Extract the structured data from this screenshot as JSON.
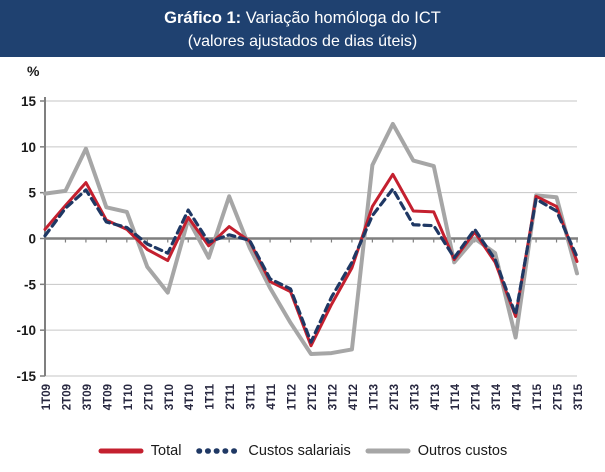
{
  "header": {
    "title_prefix": "Gráfico 1:",
    "title_main": " Variação homóloga do ICT",
    "subtitle": "(valores ajustados de dias úteis)",
    "banner_color": "#1f4170",
    "banner_text_color": "#ffffff"
  },
  "chart_data": {
    "type": "line",
    "title": "Gráfico 1: Variação homóloga do ICT",
    "subtitle": "(valores ajustados de dias úteis)",
    "xlabel": "",
    "ylabel": "%",
    "ylim": [
      -15,
      15
    ],
    "yticks": [
      15,
      10,
      5,
      0,
      -5,
      -10,
      -15
    ],
    "grid": true,
    "legend_position": "bottom",
    "categories": [
      "1T09",
      "2T09",
      "3T09",
      "4T09",
      "1T10",
      "2T10",
      "3T10",
      "4T10",
      "1T11",
      "2T11",
      "3T11",
      "4T11",
      "1T12",
      "2T12",
      "3T12",
      "4T12",
      "1T13",
      "2T13",
      "3T13",
      "4T13",
      "1T14",
      "2T14",
      "3T14",
      "4T14",
      "1T15",
      "2T15",
      "3T15"
    ],
    "series": [
      {
        "name": "Total",
        "color": "#c4202f",
        "style": "solid",
        "width": 3,
        "values": [
          1.0,
          3.6,
          6.1,
          2.0,
          1.0,
          -1.2,
          -2.4,
          2.3,
          -0.8,
          1.3,
          -0.3,
          -4.7,
          -5.8,
          -11.7,
          -7.2,
          -3.2,
          3.5,
          7.0,
          3.0,
          2.9,
          -2.3,
          0.7,
          -2.6,
          -8.5,
          4.6,
          3.5,
          -2.5
        ]
      },
      {
        "name": "Custos salariais",
        "color": "#1f3864",
        "style": "dashed",
        "width": 3.2,
        "values": [
          0.3,
          3.3,
          5.3,
          1.8,
          1.2,
          -0.6,
          -1.6,
          3.1,
          -0.4,
          0.4,
          -0.2,
          -4.4,
          -5.5,
          -11.3,
          -6.4,
          -2.6,
          2.5,
          5.4,
          1.5,
          1.4,
          -2.1,
          1.0,
          -2.3,
          -8.3,
          4.3,
          3.0,
          -2.0
        ]
      },
      {
        "name": "Outros custos",
        "color": "#a6a6a6",
        "style": "solid",
        "width": 4,
        "values": [
          4.9,
          5.2,
          9.8,
          3.4,
          2.9,
          -3.1,
          -5.9,
          2.1,
          -2.1,
          4.6,
          -1.0,
          -5.4,
          -9.2,
          -12.6,
          -12.5,
          -12.1,
          8.0,
          12.5,
          8.5,
          7.9,
          -2.6,
          0.0,
          -1.6,
          -10.8,
          4.7,
          4.5,
          -3.8
        ]
      }
    ],
    "axis_colors": {
      "gridline": "#c6c6c6",
      "zero_line": "#7f7f7f",
      "axis_line": "#7f7f7f"
    }
  }
}
